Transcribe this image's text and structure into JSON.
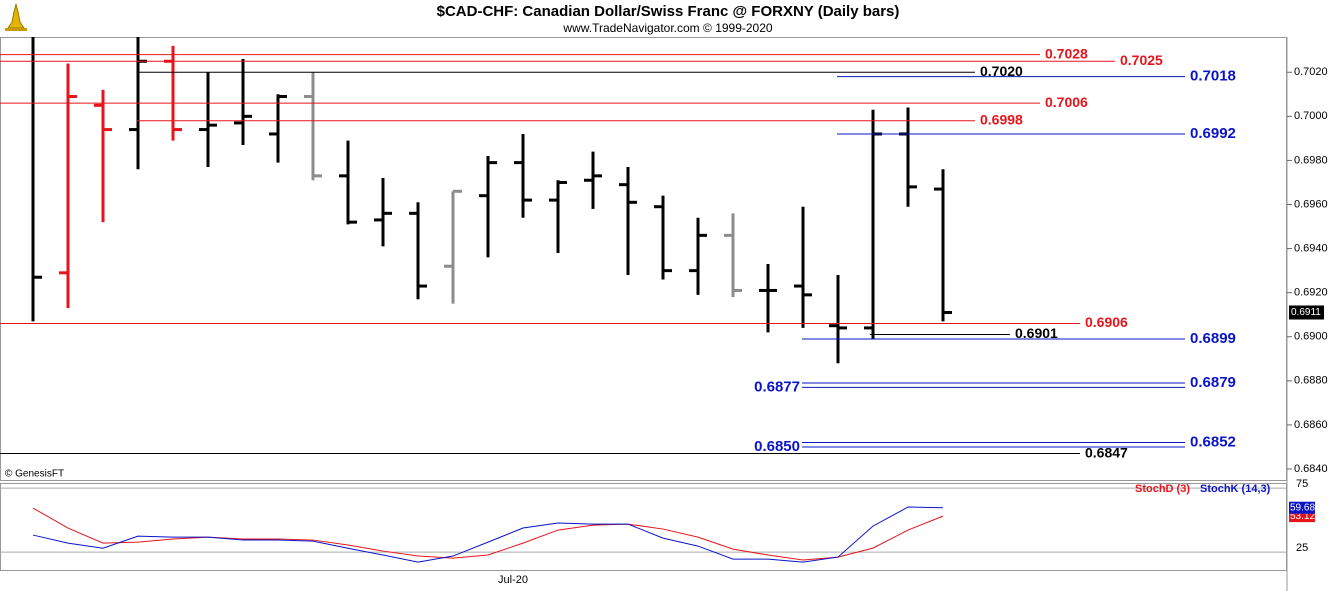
{
  "chart_data": [
    {
      "type": "ohlc",
      "title": "$CAD-CHF:  Canadian Dollar/Swiss Franc @ FORXNY  (Daily bars)",
      "subtitle": "www.TradeNavigator.com © 1999-2020",
      "source": "© GenesisFT",
      "categories": [
        null,
        null,
        null,
        null,
        null,
        null,
        null,
        null,
        null,
        null,
        null,
        null,
        null,
        null,
        "Jul-20",
        null,
        null,
        null,
        null,
        null,
        null,
        null,
        null,
        null,
        null,
        null,
        null
      ],
      "open": [
        null,
        0.6929,
        0.7005,
        0.6994,
        0.7025,
        0.6994,
        0.6997,
        0.6992,
        0.7009,
        0.6973,
        0.6953,
        0.6956,
        0.6932,
        0.6964,
        0.6979,
        0.6962,
        0.6971,
        0.6969,
        0.6959,
        0.693,
        0.6946,
        0.6921,
        0.6923,
        0.6905,
        0.6904,
        0.6992,
        0.6967
      ],
      "high": [
        0.7036,
        0.7024,
        0.7012,
        0.7036,
        0.7032,
        0.702,
        0.7026,
        0.701,
        0.702,
        0.6989,
        0.6972,
        0.6961,
        0.6966,
        0.6982,
        0.6992,
        0.6971,
        0.6984,
        0.6977,
        0.6964,
        0.6954,
        0.6956,
        0.6933,
        0.6959,
        0.6928,
        0.7003,
        0.7004,
        0.6976
      ],
      "low": [
        0.6907,
        0.6913,
        0.6952,
        0.6976,
        0.6989,
        0.6977,
        0.6987,
        0.6979,
        0.6971,
        0.6951,
        0.6941,
        0.6917,
        0.6915,
        0.6936,
        0.6954,
        0.6938,
        0.6958,
        0.6928,
        0.6926,
        0.6919,
        0.6918,
        0.6902,
        0.6904,
        0.6888,
        0.6899,
        0.6959,
        0.6907
      ],
      "close": [
        0.6927,
        0.7009,
        0.6994,
        0.7025,
        0.6994,
        0.6996,
        0.7,
        0.7009,
        0.6973,
        0.6952,
        0.6956,
        0.6923,
        0.6966,
        0.6979,
        0.6962,
        0.697,
        0.6973,
        0.6961,
        0.693,
        0.6946,
        0.6921,
        0.6921,
        0.6919,
        0.6904,
        0.6992,
        0.6968,
        0.6911
      ],
      "colors": [
        "#000000",
        "#e8141b",
        "#e8141b",
        "#000000",
        "#e8141b",
        "#000000",
        "#000000",
        "#000000",
        "#8c8c8c",
        "#000000",
        "#000000",
        "#000000",
        "#8c8c8c",
        "#000000",
        "#000000",
        "#000000",
        "#000000",
        "#000000",
        "#000000",
        "#000000",
        "#8c8c8c",
        "#000000",
        "#000000",
        "#000000",
        "#000000",
        "#000000",
        "#000000"
      ],
      "ylim": [
        0.6835,
        0.7036
      ],
      "yticks": [
        {
          "value": 0.684,
          "label": "0.6840"
        },
        {
          "value": 0.686,
          "label": "0.6860"
        },
        {
          "value": 0.688,
          "label": "0.6880"
        },
        {
          "value": 0.69,
          "label": "0.6900"
        },
        {
          "value": 0.692,
          "label": "0.6920"
        },
        {
          "value": 0.694,
          "label": "0.6940"
        },
        {
          "value": 0.696,
          "label": "0.6960"
        },
        {
          "value": 0.698,
          "label": "0.6980"
        },
        {
          "value": 0.7,
          "label": "0.7000"
        },
        {
          "value": 0.702,
          "label": "0.7020"
        }
      ],
      "levels": [
        {
          "value": 0.7028,
          "label": "0.7028",
          "color": "#e8141b"
        },
        {
          "value": 0.7025,
          "label": "0.7025",
          "color": "#e8141b"
        },
        {
          "value": 0.702,
          "label": "0.7020",
          "color": "#000000"
        },
        {
          "value": 0.7018,
          "label": "0.7018",
          "color": "#0a14c8"
        },
        {
          "value": 0.7006,
          "label": "0.7006",
          "color": "#e8141b"
        },
        {
          "value": 0.6998,
          "label": "0.6998",
          "color": "#e8141b"
        },
        {
          "value": 0.6992,
          "label": "0.6992",
          "color": "#0a14c8"
        },
        {
          "value": 0.6906,
          "label": "0.6906",
          "color": "#e8141b"
        },
        {
          "value": 0.6901,
          "label": "0.6901",
          "color": "#000000"
        },
        {
          "value": 0.6899,
          "label": "0.6899",
          "color": "#0a14c8"
        },
        {
          "value": 0.6879,
          "label": "0.6879",
          "color": "#0a14c8"
        },
        {
          "value": 0.6877,
          "label": "0.6877",
          "color": "#0a14c8"
        },
        {
          "value": 0.6852,
          "label": "0.6852",
          "color": "#0a14c8"
        },
        {
          "value": 0.685,
          "label": "0.6850",
          "color": "#0a14c8"
        },
        {
          "value": 0.6847,
          "label": "0.6847",
          "color": "#000000"
        }
      ]
    },
    {
      "type": "line",
      "series": [
        {
          "name": "StochD (3)",
          "color": "#e8141b",
          "values": [
            59.4,
            43.8,
            32,
            32.8,
            35.2,
            36.7,
            35.2,
            35.2,
            34.4,
            30.5,
            25.8,
            21.9,
            20.3,
            22.7,
            32,
            42.2,
            46.1,
            46.9,
            43,
            36.7,
            27.3,
            22.7,
            18.8,
            21.1,
            28.1,
            42.2,
            53.12
          ]
        },
        {
          "name": "StochK (14,3)",
          "color": "#0a14c8",
          "values": [
            38.3,
            32,
            28,
            37.5,
            36.7,
            36.7,
            34.4,
            34.4,
            33.6,
            28,
            22.7,
            17.2,
            21.9,
            32.8,
            43.8,
            47.7,
            46.9,
            46.9,
            35.9,
            29.7,
            19.5,
            19.5,
            17.2,
            21.1,
            45.3,
            60.2,
            59.68
          ]
        }
      ],
      "ylim": [
        11,
        79
      ],
      "yticks": [
        25,
        75
      ]
    }
  ]
}
